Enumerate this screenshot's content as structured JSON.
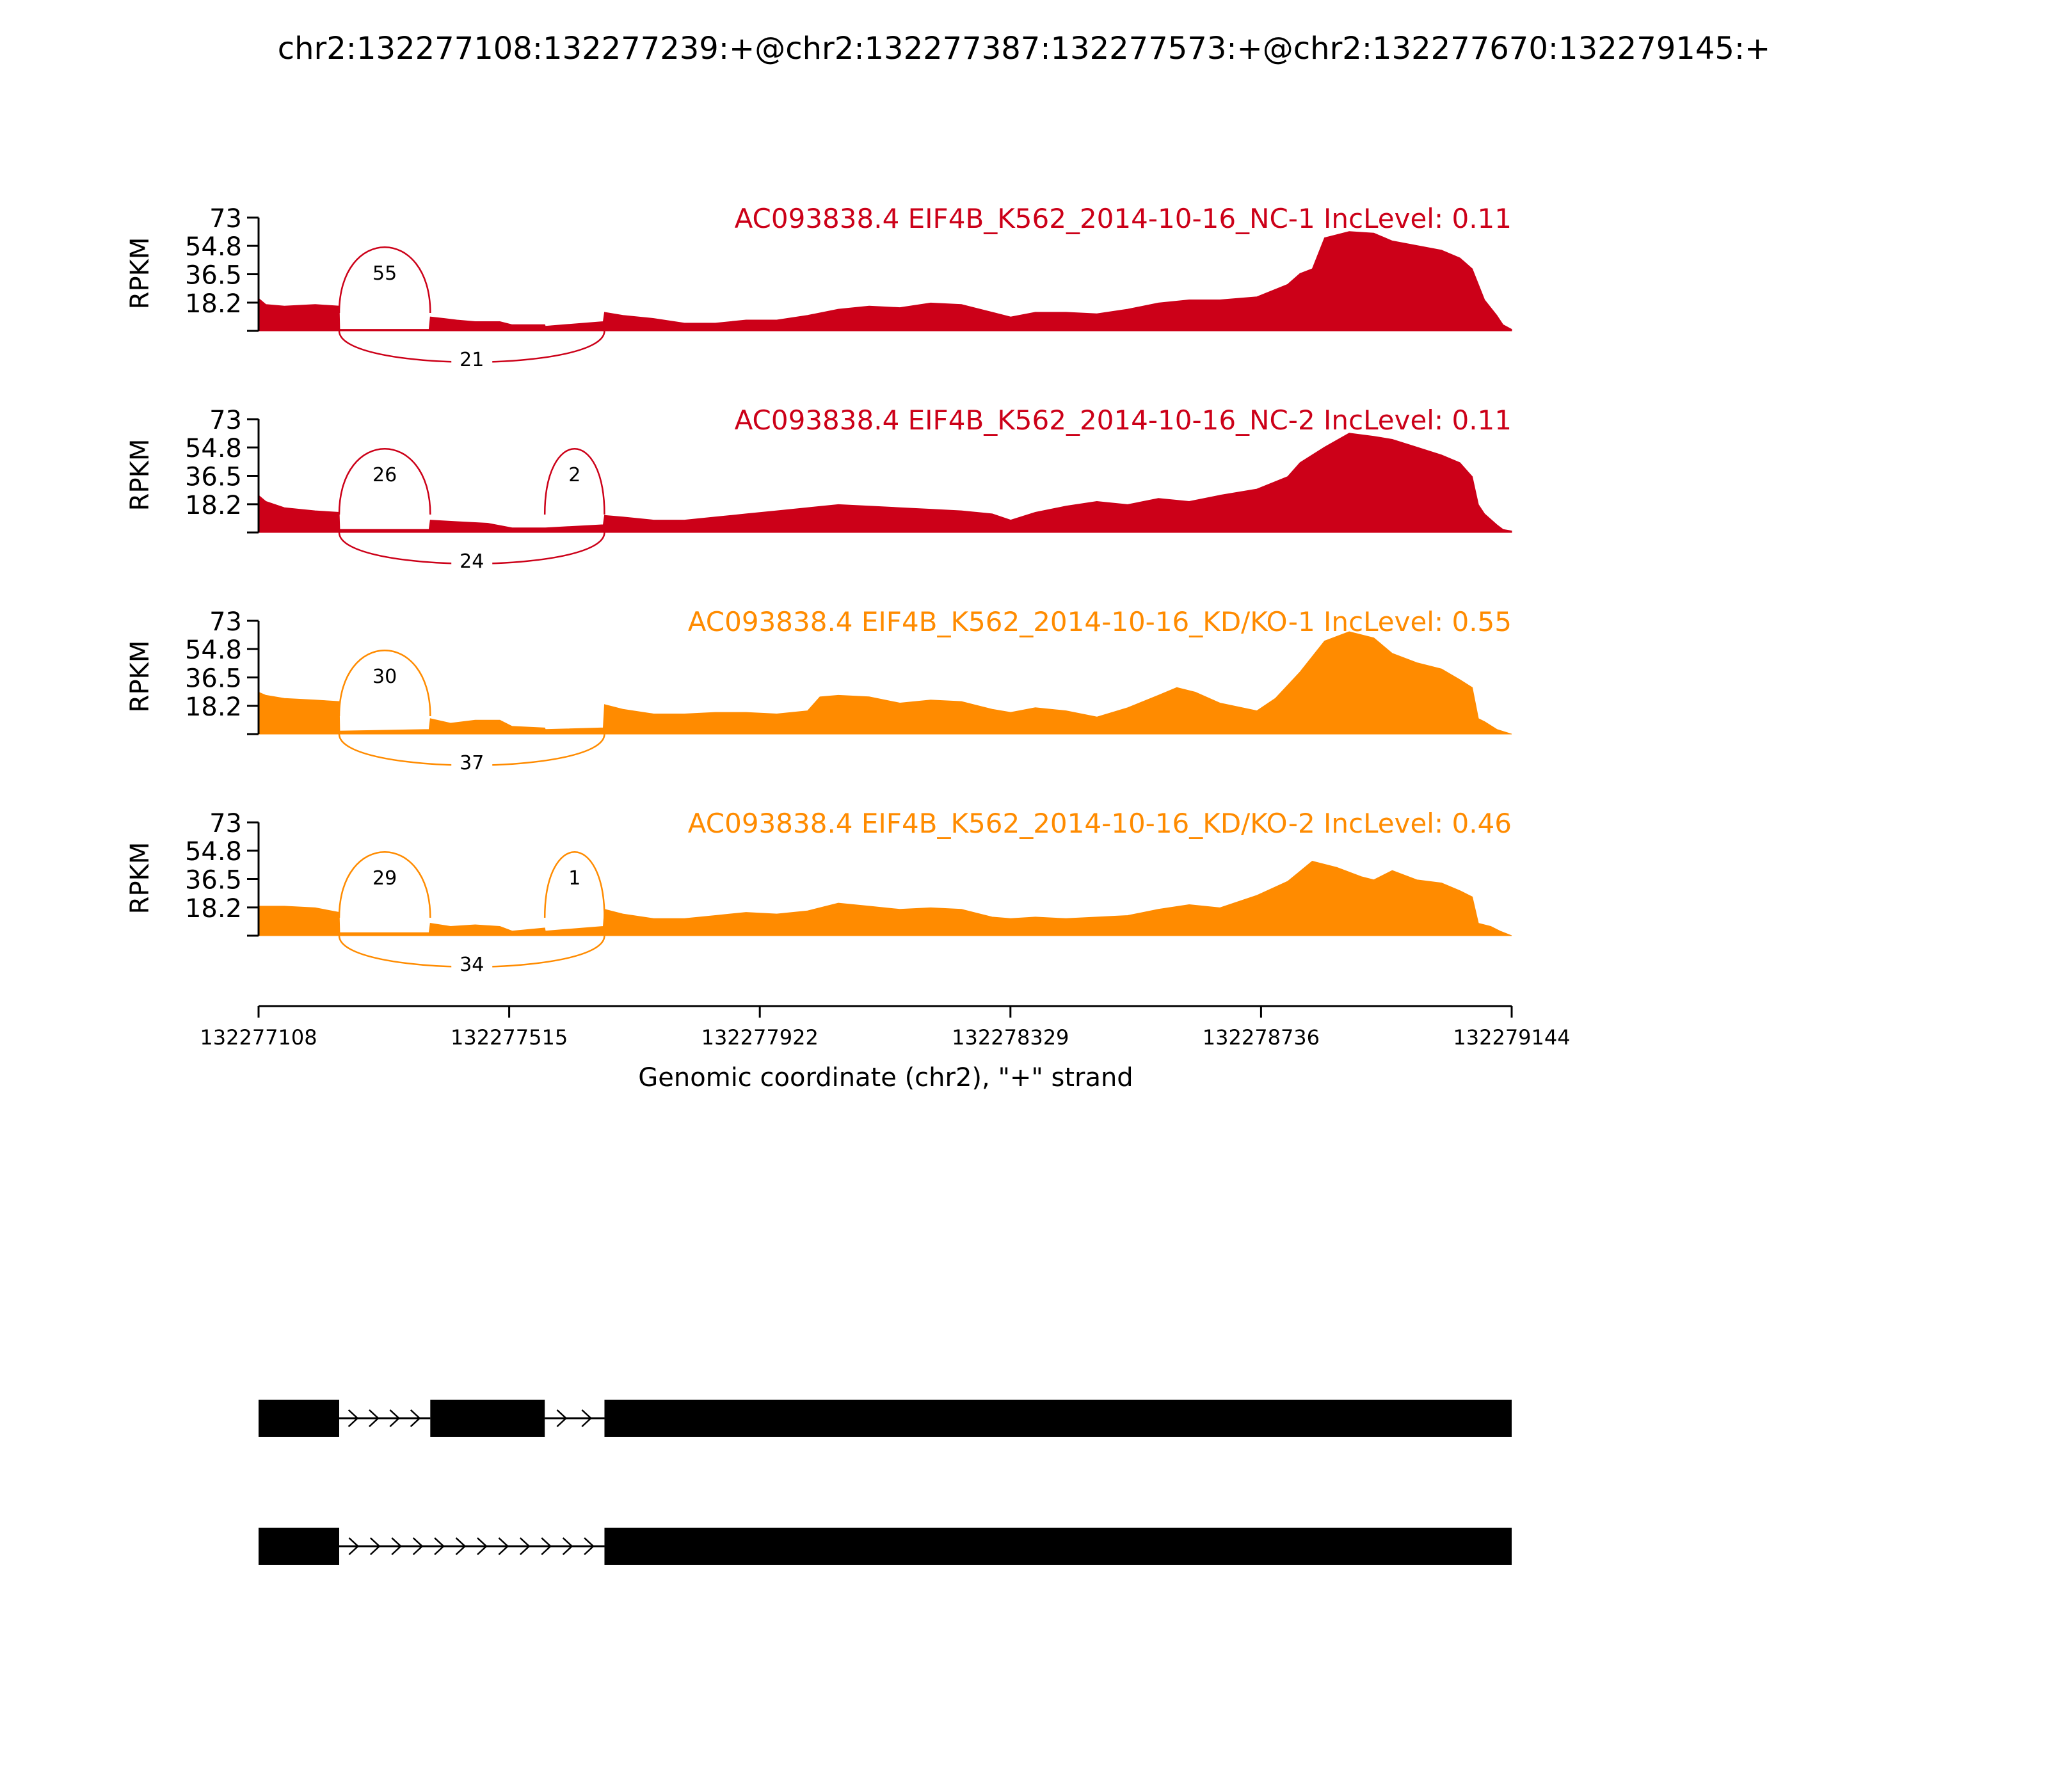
{
  "title": "chr2:132277108:132277239:+@chr2:132277387:132277573:+@chr2:132277670:132279145:+",
  "axis": {
    "ylabel": "RPKM",
    "xlabel": "Genomic coordinate (chr2), \"+\" strand",
    "xlim": [
      132277108,
      132279144
    ],
    "xticks": [
      "132277108",
      "132277515",
      "132277922",
      "132278329",
      "132278736",
      "132279144"
    ],
    "ylim": [
      0,
      73
    ],
    "yticks": [
      "73",
      "54.8",
      "36.5",
      "18.2"
    ]
  },
  "colors": {
    "nc": "#cc0018",
    "kd": "#ff8b00",
    "gene": "#000000"
  },
  "chart_data": {
    "type": "area",
    "exons": [
      [
        132277108,
        132277239
      ],
      [
        132277387,
        132277573
      ],
      [
        132277670,
        132279145
      ]
    ],
    "tracks": [
      {
        "label": "AC093838.4 EIF4B_K562_2014-10-16_NC-1 IncLevel: 0.11",
        "group": "nc",
        "coverage": [
          [
            132277108,
            21
          ],
          [
            132277120,
            17
          ],
          [
            132277150,
            16
          ],
          [
            132277200,
            17
          ],
          [
            132277239,
            16
          ],
          [
            132277240,
            1
          ],
          [
            132277385,
            1
          ],
          [
            132277387,
            9
          ],
          [
            132277410,
            8
          ],
          [
            132277430,
            7
          ],
          [
            132277460,
            6
          ],
          [
            132277480,
            6
          ],
          [
            132277500,
            6
          ],
          [
            132277520,
            4
          ],
          [
            132277573,
            4
          ],
          [
            132277574,
            3
          ],
          [
            132277668,
            6
          ],
          [
            132277670,
            12
          ],
          [
            132277700,
            10
          ],
          [
            132277750,
            8
          ],
          [
            132277800,
            5
          ],
          [
            132277850,
            5
          ],
          [
            132277900,
            7
          ],
          [
            132277950,
            7
          ],
          [
            132278000,
            10
          ],
          [
            132278050,
            14
          ],
          [
            132278100,
            16
          ],
          [
            132278150,
            15
          ],
          [
            132278200,
            18
          ],
          [
            132278250,
            17
          ],
          [
            132278300,
            12
          ],
          [
            132278330,
            9
          ],
          [
            132278370,
            12
          ],
          [
            132278420,
            12
          ],
          [
            132278470,
            11
          ],
          [
            132278520,
            14
          ],
          [
            132278570,
            18
          ],
          [
            132278620,
            20
          ],
          [
            132278670,
            20
          ],
          [
            132278730,
            22
          ],
          [
            132278780,
            30
          ],
          [
            132278800,
            37
          ],
          [
            132278820,
            40
          ],
          [
            132278840,
            60
          ],
          [
            132278880,
            64
          ],
          [
            132278920,
            63
          ],
          [
            132278950,
            58
          ],
          [
            132278990,
            55
          ],
          [
            132279030,
            52
          ],
          [
            132279060,
            47
          ],
          [
            132279080,
            40
          ],
          [
            132279090,
            30
          ],
          [
            132279100,
            20
          ],
          [
            132279120,
            10
          ],
          [
            132279130,
            4
          ],
          [
            132279144,
            1
          ]
        ],
        "junctions": [
          {
            "start": 132277239,
            "end": 132277387,
            "count": "55",
            "side": "top"
          },
          {
            "start": 132277239,
            "end": 132277670,
            "count": "21",
            "side": "bottom"
          }
        ]
      },
      {
        "label": "AC093838.4 EIF4B_K562_2014-10-16_NC-2 IncLevel: 0.11",
        "group": "nc",
        "coverage": [
          [
            132277108,
            24
          ],
          [
            132277120,
            20
          ],
          [
            132277150,
            16
          ],
          [
            132277200,
            14
          ],
          [
            132277239,
            13
          ],
          [
            132277240,
            2
          ],
          [
            132277385,
            2
          ],
          [
            132277387,
            8
          ],
          [
            132277430,
            7
          ],
          [
            132277480,
            6
          ],
          [
            132277520,
            3
          ],
          [
            132277573,
            3
          ],
          [
            132277574,
            3
          ],
          [
            132277668,
            5
          ],
          [
            132277670,
            11
          ],
          [
            132277700,
            10
          ],
          [
            132277750,
            8
          ],
          [
            132277800,
            8
          ],
          [
            132277850,
            10
          ],
          [
            132277900,
            12
          ],
          [
            132277950,
            14
          ],
          [
            132278000,
            16
          ],
          [
            132278050,
            18
          ],
          [
            132278100,
            17
          ],
          [
            132278150,
            16
          ],
          [
            132278200,
            15
          ],
          [
            132278250,
            14
          ],
          [
            132278300,
            12
          ],
          [
            132278330,
            8
          ],
          [
            132278370,
            13
          ],
          [
            132278420,
            17
          ],
          [
            132278470,
            20
          ],
          [
            132278520,
            18
          ],
          [
            132278570,
            22
          ],
          [
            132278620,
            20
          ],
          [
            132278670,
            24
          ],
          [
            132278730,
            28
          ],
          [
            132278780,
            36
          ],
          [
            132278800,
            45
          ],
          [
            132278840,
            55
          ],
          [
            132278880,
            64
          ],
          [
            132278920,
            62
          ],
          [
            132278950,
            60
          ],
          [
            132278990,
            55
          ],
          [
            132279030,
            50
          ],
          [
            132279060,
            45
          ],
          [
            132279080,
            36
          ],
          [
            132279090,
            18
          ],
          [
            132279100,
            12
          ],
          [
            132279120,
            5
          ],
          [
            132279130,
            2
          ],
          [
            132279144,
            1
          ]
        ],
        "junctions": [
          {
            "start": 132277239,
            "end": 132277387,
            "count": "26",
            "side": "top"
          },
          {
            "start": 132277573,
            "end": 132277670,
            "count": "2",
            "side": "top"
          },
          {
            "start": 132277239,
            "end": 132277670,
            "count": "24",
            "side": "bottom"
          }
        ]
      },
      {
        "label": "AC093838.4 EIF4B_K562_2014-10-16_KD/KO-1 IncLevel: 0.55",
        "group": "kd",
        "coverage": [
          [
            132277108,
            27
          ],
          [
            132277120,
            25
          ],
          [
            132277150,
            23
          ],
          [
            132277200,
            22
          ],
          [
            132277239,
            21
          ],
          [
            132277240,
            2
          ],
          [
            132277385,
            3
          ],
          [
            132277387,
            10
          ],
          [
            132277420,
            7
          ],
          [
            132277460,
            9
          ],
          [
            132277500,
            9
          ],
          [
            132277520,
            5
          ],
          [
            132277573,
            4
          ],
          [
            132277574,
            3
          ],
          [
            132277668,
            4
          ],
          [
            132277670,
            19
          ],
          [
            132277700,
            16
          ],
          [
            132277750,
            13
          ],
          [
            132277800,
            13
          ],
          [
            132277850,
            14
          ],
          [
            132277900,
            14
          ],
          [
            132277950,
            13
          ],
          [
            132278000,
            15
          ],
          [
            132278020,
            24
          ],
          [
            132278050,
            25
          ],
          [
            132278100,
            24
          ],
          [
            132278150,
            20
          ],
          [
            132278200,
            22
          ],
          [
            132278250,
            21
          ],
          [
            132278300,
            16
          ],
          [
            132278330,
            14
          ],
          [
            132278370,
            17
          ],
          [
            132278420,
            15
          ],
          [
            132278470,
            11
          ],
          [
            132278520,
            17
          ],
          [
            132278570,
            25
          ],
          [
            132278600,
            30
          ],
          [
            132278630,
            27
          ],
          [
            132278670,
            20
          ],
          [
            132278730,
            15
          ],
          [
            132278760,
            23
          ],
          [
            132278800,
            40
          ],
          [
            132278840,
            60
          ],
          [
            132278880,
            66
          ],
          [
            132278920,
            62
          ],
          [
            132278950,
            52
          ],
          [
            132278990,
            46
          ],
          [
            132279030,
            42
          ],
          [
            132279060,
            35
          ],
          [
            132279080,
            30
          ],
          [
            132279090,
            10
          ],
          [
            132279100,
            8
          ],
          [
            132279120,
            3
          ],
          [
            132279144,
            0
          ]
        ],
        "junctions": [
          {
            "start": 132277239,
            "end": 132277387,
            "count": "30",
            "side": "top"
          },
          {
            "start": 132277239,
            "end": 132277670,
            "count": "37",
            "side": "bottom"
          }
        ]
      },
      {
        "label": "AC093838.4 EIF4B_K562_2014-10-16_KD/KO-2 IncLevel: 0.46",
        "group": "kd",
        "coverage": [
          [
            132277108,
            19
          ],
          [
            132277150,
            19
          ],
          [
            132277200,
            18
          ],
          [
            132277239,
            15
          ],
          [
            132277240,
            2
          ],
          [
            132277385,
            2
          ],
          [
            132277387,
            8
          ],
          [
            132277420,
            6
          ],
          [
            132277460,
            7
          ],
          [
            132277500,
            6
          ],
          [
            132277520,
            3
          ],
          [
            132277573,
            5
          ],
          [
            132277574,
            3
          ],
          [
            132277668,
            6
          ],
          [
            132277670,
            17
          ],
          [
            132277700,
            14
          ],
          [
            132277750,
            11
          ],
          [
            132277800,
            11
          ],
          [
            132277850,
            13
          ],
          [
            132277900,
            15
          ],
          [
            132277950,
            14
          ],
          [
            132278000,
            16
          ],
          [
            132278050,
            21
          ],
          [
            132278100,
            19
          ],
          [
            132278150,
            17
          ],
          [
            132278200,
            18
          ],
          [
            132278250,
            17
          ],
          [
            132278300,
            12
          ],
          [
            132278330,
            11
          ],
          [
            132278370,
            12
          ],
          [
            132278420,
            11
          ],
          [
            132278470,
            12
          ],
          [
            132278520,
            13
          ],
          [
            132278570,
            17
          ],
          [
            132278620,
            20
          ],
          [
            132278670,
            18
          ],
          [
            132278730,
            26
          ],
          [
            132278780,
            35
          ],
          [
            132278820,
            48
          ],
          [
            132278860,
            44
          ],
          [
            132278900,
            38
          ],
          [
            132278920,
            36
          ],
          [
            132278950,
            42
          ],
          [
            132278990,
            36
          ],
          [
            132279030,
            34
          ],
          [
            132279060,
            29
          ],
          [
            132279080,
            25
          ],
          [
            132279090,
            8
          ],
          [
            132279110,
            6
          ],
          [
            132279125,
            3
          ],
          [
            132279144,
            0
          ]
        ],
        "junctions": [
          {
            "start": 132277239,
            "end": 132277387,
            "count": "29",
            "side": "top"
          },
          {
            "start": 132277573,
            "end": 132277670,
            "count": "1",
            "side": "top"
          },
          {
            "start": 132277239,
            "end": 132277670,
            "count": "34",
            "side": "bottom"
          }
        ]
      }
    ],
    "isoforms": [
      {
        "exons": [
          [
            132277108,
            132277239
          ],
          [
            132277387,
            132277573
          ],
          [
            132277670,
            132279145
          ]
        ]
      },
      {
        "exons": [
          [
            132277108,
            132277239
          ],
          [
            132277670,
            132279145
          ]
        ]
      }
    ]
  }
}
